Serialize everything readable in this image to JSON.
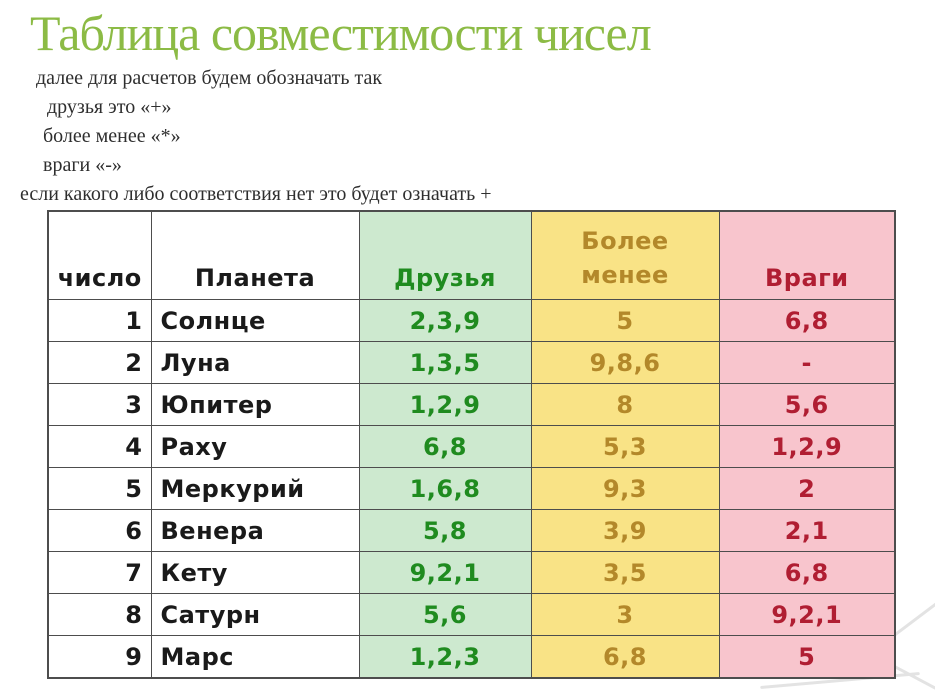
{
  "title": "Таблица совместимости чисел",
  "intro": {
    "line1": "далее для расчетов будем обозначать так",
    "line2": "друзья  это «+»",
    "line3": "более менее «*»",
    "line4": "враги «-»",
    "line5": "если какого либо соответствия нет это будет означать +"
  },
  "table": {
    "headers": {
      "number": "число",
      "planet": "Планета",
      "friends": "Друзья",
      "more_less_lines": [
        "Более",
        "менее"
      ],
      "enemies": "Враги"
    },
    "rows": [
      {
        "number": "1",
        "planet": "Солнце",
        "friends": "2,3,9",
        "more_less": "5",
        "enemies": "6,8"
      },
      {
        "number": "2",
        "planet": "Луна",
        "friends": "1,3,5",
        "more_less": "9,8,6",
        "enemies": "-"
      },
      {
        "number": "3",
        "planet": "Юпитер",
        "friends": "1,2,9",
        "more_less": "8",
        "enemies": "5,6"
      },
      {
        "number": "4",
        "planet": "Раху",
        "friends": "6,8",
        "more_less": "5,3",
        "enemies": "1,2,9"
      },
      {
        "number": "5",
        "planet": "Меркурий",
        "friends": "1,6,8",
        "more_less": "9,3",
        "enemies": "2"
      },
      {
        "number": "6",
        "planet": "Венера",
        "friends": "5,8",
        "more_less": "3,9",
        "enemies": "2,1"
      },
      {
        "number": "7",
        "planet": "Кету",
        "friends": "9,2,1",
        "more_less": "3,5",
        "enemies": "6,8"
      },
      {
        "number": "8",
        "planet": "Сатурн",
        "friends": "5,6",
        "more_less": "3",
        "enemies": "9,2,1"
      },
      {
        "number": "9",
        "planet": "Марс",
        "friends": "1,2,3",
        "more_less": "6,8",
        "enemies": "5"
      }
    ]
  },
  "colors": {
    "title_green": "#8cbb45",
    "friends_bg": "#cde9cf",
    "friends_text": "#1f8b1f",
    "more_less_bg": "#f9e386",
    "more_less_text": "#b3882a",
    "enemies_bg": "#f8c5cd",
    "enemies_text": "#b01e32",
    "border": "#4d4d4d"
  }
}
